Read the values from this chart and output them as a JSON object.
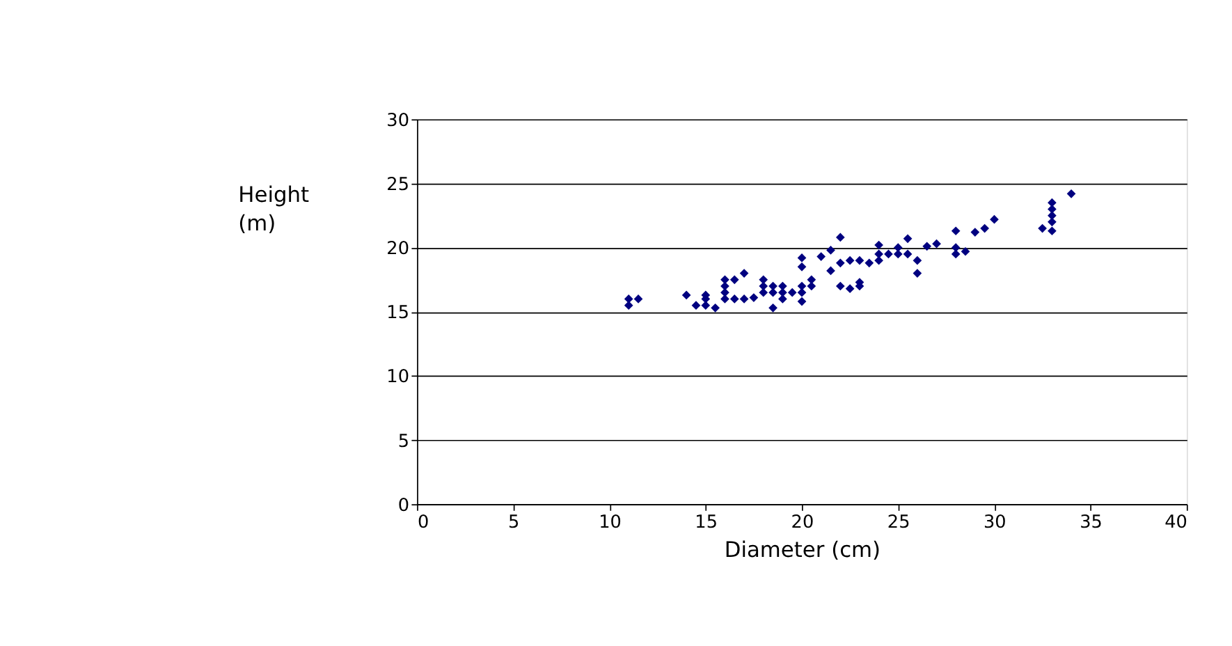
{
  "chart_data": {
    "type": "scatter",
    "xlabel": "Diameter (cm)",
    "ylabel": "Height (m)",
    "x": [
      11,
      11,
      11.5,
      14,
      14.5,
      15,
      15,
      15,
      15.5,
      16,
      16,
      16,
      16,
      16.5,
      16.5,
      17,
      17,
      17.5,
      18,
      18,
      18,
      18.5,
      18.5,
      18.5,
      19,
      19,
      19,
      19.5,
      20,
      20,
      20,
      20,
      20,
      20.5,
      20.5,
      21,
      21.5,
      21.5,
      22,
      22,
      22,
      22.5,
      22.5,
      23,
      23,
      23,
      23.5,
      24,
      24,
      24,
      24.5,
      25,
      25,
      25.5,
      25.5,
      26,
      26,
      26.5,
      27,
      28,
      28,
      28,
      28.5,
      29,
      29.5,
      30,
      32.5,
      33,
      33,
      33,
      33,
      33,
      34
    ],
    "series": [
      {
        "color": "#000080",
        "values": [
          16,
          15.5,
          16,
          16.3,
          15.5,
          16,
          15.5,
          16.3,
          15.3,
          16,
          16.5,
          17,
          17.5,
          16,
          17.5,
          18,
          16,
          16.1,
          16.5,
          17.5,
          17,
          15.3,
          16.5,
          17,
          16,
          16.5,
          17,
          16.5,
          15.8,
          16.5,
          17,
          18.5,
          19.2,
          17,
          17.5,
          19.3,
          18.2,
          19.8,
          20.8,
          17,
          18.8,
          16.8,
          19,
          17,
          17.3,
          19,
          18.8,
          19,
          19.5,
          20.2,
          19.5,
          19.5,
          20,
          19.5,
          20.7,
          18,
          19,
          20.1,
          20.3,
          19.5,
          20,
          21.3,
          19.7,
          21.2,
          21.5,
          22.2,
          21.5,
          21.3,
          22,
          22.5,
          23,
          23.5,
          24.2
        ]
      }
    ],
    "xlim": [
      0,
      40
    ],
    "xticks": [
      0,
      5,
      10,
      15,
      20,
      25,
      30,
      35,
      40
    ],
    "ylim": [
      0,
      30
    ],
    "yticks": [
      0,
      5,
      10,
      15,
      20,
      25,
      30
    ],
    "grid": "y",
    "marker": "diamond",
    "legend": false
  }
}
